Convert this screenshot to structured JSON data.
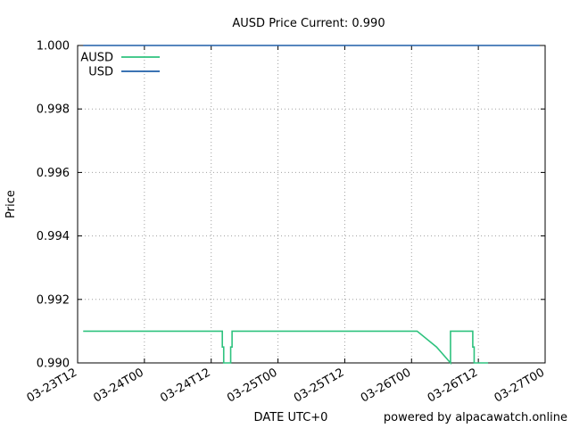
{
  "chart_data": {
    "type": "line",
    "title": "AUSD Price Current: 0.990",
    "xlabel": "DATE UTC+0",
    "ylabel": "Price",
    "credit": "powered by alpacawatch.online",
    "xlim": [
      "2024-03-23T12:00",
      "2024-03-27T00:00"
    ],
    "ylim": [
      0.99,
      1.0
    ],
    "grid": true,
    "legend_position": "top-left",
    "x_ticks": [
      {
        "t": "2024-03-23T12:00",
        "label": "03-23T12"
      },
      {
        "t": "2024-03-24T00:00",
        "label": "03-24T00"
      },
      {
        "t": "2024-03-24T12:00",
        "label": "03-24T12"
      },
      {
        "t": "2024-03-25T00:00",
        "label": "03-25T00"
      },
      {
        "t": "2024-03-25T12:00",
        "label": "03-25T12"
      },
      {
        "t": "2024-03-26T00:00",
        "label": "03-26T00"
      },
      {
        "t": "2024-03-26T12:00",
        "label": "03-26T12"
      },
      {
        "t": "2024-03-27T00:00",
        "label": "03-27T00"
      }
    ],
    "y_ticks": [
      {
        "v": 1.0,
        "label": "1.000"
      },
      {
        "v": 0.998,
        "label": "0.998"
      },
      {
        "v": 0.996,
        "label": "0.996"
      },
      {
        "v": 0.994,
        "label": "0.994"
      },
      {
        "v": 0.992,
        "label": "0.992"
      },
      {
        "v": 0.99,
        "label": "0.990"
      }
    ],
    "series": [
      {
        "name": "AUSD",
        "color": "#2ec27e",
        "points": [
          [
            "2024-03-23T13:00",
            0.991
          ],
          [
            "2024-03-24T14:00",
            0.991
          ],
          [
            "2024-03-24T14:00",
            0.9905
          ],
          [
            "2024-03-24T14:15",
            0.9905
          ],
          [
            "2024-03-24T14:15",
            0.99
          ],
          [
            "2024-03-24T15:30",
            0.99
          ],
          [
            "2024-03-24T15:30",
            0.9905
          ],
          [
            "2024-03-24T15:45",
            0.9905
          ],
          [
            "2024-03-24T15:45",
            0.991
          ],
          [
            "2024-03-26T01:00",
            0.991
          ],
          [
            "2024-03-26T04:30",
            0.9905
          ],
          [
            "2024-03-26T07:00",
            0.99
          ],
          [
            "2024-03-26T07:00",
            0.991
          ],
          [
            "2024-03-26T11:00",
            0.991
          ],
          [
            "2024-03-26T11:00",
            0.9905
          ],
          [
            "2024-03-26T11:15",
            0.9905
          ],
          [
            "2024-03-26T11:15",
            0.99
          ],
          [
            "2024-03-26T13:45",
            0.99
          ]
        ]
      },
      {
        "name": "USD",
        "color": "#1f5fa8",
        "points": [
          [
            "2024-03-23T13:00",
            1.0
          ],
          [
            "2024-03-26T23:00",
            1.0
          ]
        ]
      }
    ]
  }
}
